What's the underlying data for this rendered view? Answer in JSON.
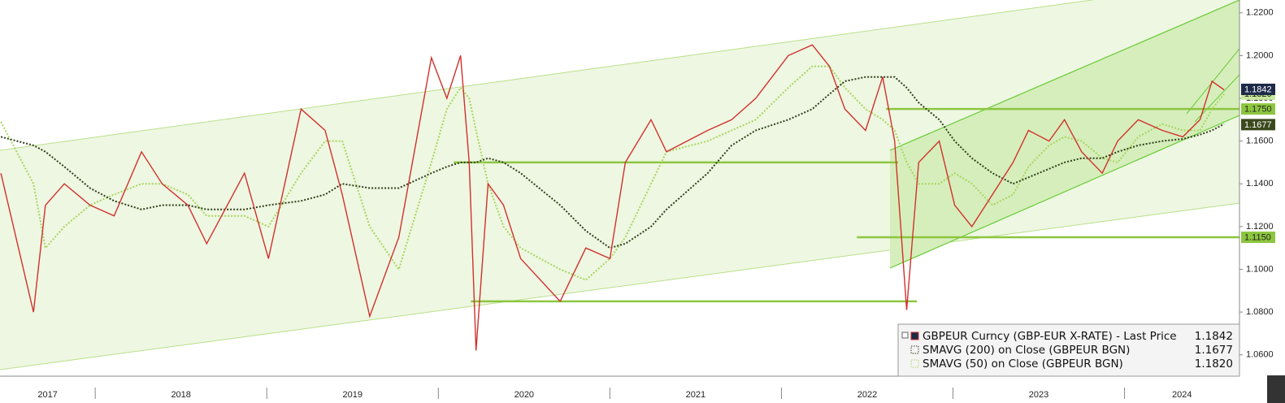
{
  "chart_data": {
    "type": "line",
    "x": [
      2017.45,
      2017.64,
      2017.71,
      2017.82,
      2017.97,
      2018.11,
      2018.27,
      2018.39,
      2018.54,
      2018.65,
      2018.87,
      2019.01,
      2019.2,
      2019.34,
      2019.44,
      2019.6,
      2019.77,
      2019.96,
      2020.05,
      2020.13,
      2020.18,
      2020.22,
      2020.29,
      2020.38,
      2020.48,
      2020.71,
      2020.86,
      2021.0,
      2021.09,
      2021.24,
      2021.33,
      2021.57,
      2021.71,
      2021.85,
      2022.04,
      2022.18,
      2022.28,
      2022.37,
      2022.49,
      2022.59,
      2022.66,
      2022.73,
      2022.8,
      2022.92,
      2023.01,
      2023.11,
      2023.23,
      2023.35,
      2023.44,
      2023.56,
      2023.65,
      2023.75,
      2023.87,
      2023.96,
      2024.08,
      2024.22,
      2024.34,
      2024.44,
      2024.51,
      2024.58
    ],
    "series": [
      {
        "name": "GBPEUR Curncy (GBP-EUR X-RATE) - Last Price",
        "color": "#d0312d",
        "tag_color": "#1c2a48",
        "last": 1.1842,
        "values": [
          1.145,
          1.08,
          1.13,
          1.14,
          1.13,
          1.125,
          1.155,
          1.14,
          1.13,
          1.112,
          1.145,
          1.105,
          1.175,
          1.165,
          1.135,
          1.078,
          1.115,
          1.199,
          1.18,
          1.2,
          1.15,
          1.062,
          1.14,
          1.13,
          1.105,
          1.085,
          1.11,
          1.105,
          1.15,
          1.17,
          1.155,
          1.165,
          1.17,
          1.18,
          1.2,
          1.205,
          1.195,
          1.175,
          1.165,
          1.19,
          1.16,
          1.081,
          1.15,
          1.16,
          1.13,
          1.12,
          1.135,
          1.15,
          1.165,
          1.16,
          1.17,
          1.155,
          1.145,
          1.16,
          1.17,
          1.165,
          1.162,
          1.17,
          1.188,
          1.184
        ]
      },
      {
        "name": "SMAVG (200)  on Close (GBPEUR BGN)",
        "color": "#2f3f1a",
        "tag_color": "#3b4a1e",
        "last": 1.1677,
        "values": [
          1.162,
          1.158,
          1.155,
          1.148,
          1.138,
          1.132,
          1.128,
          1.13,
          1.13,
          1.128,
          1.128,
          1.13,
          1.132,
          1.135,
          1.14,
          1.138,
          1.138,
          1.145,
          1.148,
          1.15,
          1.15,
          1.15,
          1.152,
          1.15,
          1.145,
          1.13,
          1.118,
          1.11,
          1.112,
          1.12,
          1.128,
          1.145,
          1.158,
          1.165,
          1.17,
          1.175,
          1.182,
          1.188,
          1.19,
          1.19,
          1.19,
          1.185,
          1.178,
          1.17,
          1.16,
          1.152,
          1.145,
          1.14,
          1.143,
          1.147,
          1.15,
          1.152,
          1.152,
          1.155,
          1.158,
          1.16,
          1.161,
          1.163,
          1.165,
          1.168
        ]
      },
      {
        "name": "SMAVG (50)  on Close (GBPEUR BGN)",
        "color": "#a8d65c",
        "tag_color": "#c8e89a",
        "last": {
          "value": 1.182,
          "label": "1.1820"
        },
        "values": [
          1.169,
          1.14,
          1.11,
          1.12,
          1.13,
          1.135,
          1.14,
          1.14,
          1.135,
          1.125,
          1.125,
          1.12,
          1.145,
          1.16,
          1.16,
          1.12,
          1.1,
          1.15,
          1.175,
          1.185,
          1.18,
          1.165,
          1.14,
          1.12,
          1.11,
          1.1,
          1.095,
          1.105,
          1.115,
          1.14,
          1.155,
          1.16,
          1.165,
          1.17,
          1.185,
          1.195,
          1.195,
          1.185,
          1.175,
          1.17,
          1.165,
          1.15,
          1.14,
          1.14,
          1.145,
          1.14,
          1.13,
          1.135,
          1.148,
          1.158,
          1.162,
          1.16,
          1.152,
          1.15,
          1.162,
          1.168,
          1.165,
          1.165,
          1.175,
          1.182
        ]
      }
    ],
    "levels": [
      {
        "value": 1.15,
        "x0": 2020.09,
        "x1": 2022.68
      },
      {
        "value": {
          "value": 1.175,
          "label": "1.1750"
        },
        "x0": 2022.61
      },
      {
        "value": {
          "value": 1.115,
          "label": "1.1150"
        },
        "x0": 2022.44
      },
      {
        "value": 1.085,
        "x0": 2020.19,
        "x1": 2022.79
      }
    ],
    "level_color": "#8cc63f",
    "xlim": [
      2017.445,
      2024.67
    ],
    "xticks": [
      2017,
      2018,
      2019,
      2020,
      2021,
      2022,
      2023,
      2024
    ],
    "ylim": [
      1.05,
      1.226
    ],
    "yticks": [
      {
        "value": 1.06,
        "label": "1.0600"
      },
      {
        "value": 1.08,
        "label": "1.0800"
      },
      {
        "value": 1.1,
        "label": "1.1000"
      },
      {
        "value": 1.12,
        "label": "1.1200"
      },
      {
        "value": 1.14,
        "label": "1.1400"
      },
      {
        "value": 1.16,
        "label": "1.1600"
      },
      {
        "value": 1.18,
        "label": "1.1800"
      },
      {
        "value": 1.2,
        "label": "1.2000"
      },
      {
        "value": 1.22,
        "label": "1.2200"
      }
    ]
  }
}
